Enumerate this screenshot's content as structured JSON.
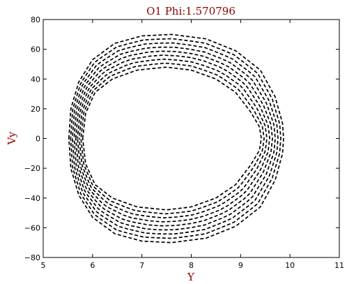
{
  "chart_data": {
    "type": "line",
    "title": "O1 Phi:1.570796",
    "xlabel": "Y",
    "ylabel": "Vy",
    "xlim": [
      5,
      11
    ],
    "ylim": [
      -80,
      80
    ],
    "xticks": [
      "5",
      "6",
      "7",
      "8",
      "9",
      "10",
      "11"
    ],
    "yticks": [
      "80",
      "60",
      "40",
      "20",
      "0",
      "−20",
      "−40",
      "−60",
      "−80"
    ],
    "grid": false,
    "legend": false,
    "line_style": "dashed",
    "series": [
      {
        "points": [
          [
            5.52,
            0
          ],
          [
            5.56,
            20
          ],
          [
            5.72,
            38
          ],
          [
            6.0,
            53
          ],
          [
            6.45,
            64
          ],
          [
            7.0,
            69
          ],
          [
            7.6,
            70
          ],
          [
            8.3,
            67
          ],
          [
            8.9,
            59
          ],
          [
            9.4,
            46
          ],
          [
            9.7,
            28
          ],
          [
            9.85,
            10
          ],
          [
            9.87,
            0
          ],
          [
            9.85,
            -10
          ],
          [
            9.7,
            -28
          ],
          [
            9.4,
            -46
          ],
          [
            8.9,
            -59
          ],
          [
            8.3,
            -67
          ],
          [
            7.6,
            -70
          ],
          [
            7.0,
            -69
          ],
          [
            6.45,
            -64
          ],
          [
            6.0,
            -53
          ],
          [
            5.72,
            -38
          ],
          [
            5.56,
            -20
          ],
          [
            5.52,
            0
          ]
        ]
      },
      {
        "points": [
          [
            5.8,
            0
          ],
          [
            5.86,
            17
          ],
          [
            6.05,
            31
          ],
          [
            6.4,
            40
          ],
          [
            6.9,
            46
          ],
          [
            7.5,
            48
          ],
          [
            8.0,
            46
          ],
          [
            8.5,
            40
          ],
          [
            8.9,
            31
          ],
          [
            9.2,
            18
          ],
          [
            9.38,
            8
          ],
          [
            9.42,
            0
          ],
          [
            9.38,
            -8
          ],
          [
            9.2,
            -18
          ],
          [
            8.9,
            -31
          ],
          [
            8.5,
            -40
          ],
          [
            8.0,
            -46
          ],
          [
            7.5,
            -48
          ],
          [
            6.9,
            -46
          ],
          [
            6.4,
            -40
          ],
          [
            6.05,
            -31
          ],
          [
            5.86,
            -17
          ],
          [
            5.8,
            0
          ]
        ]
      }
    ],
    "colors": {
      "line": "#000000",
      "title": "#8b0000",
      "axis_label": "#8b0000",
      "frame": "#000000"
    }
  }
}
